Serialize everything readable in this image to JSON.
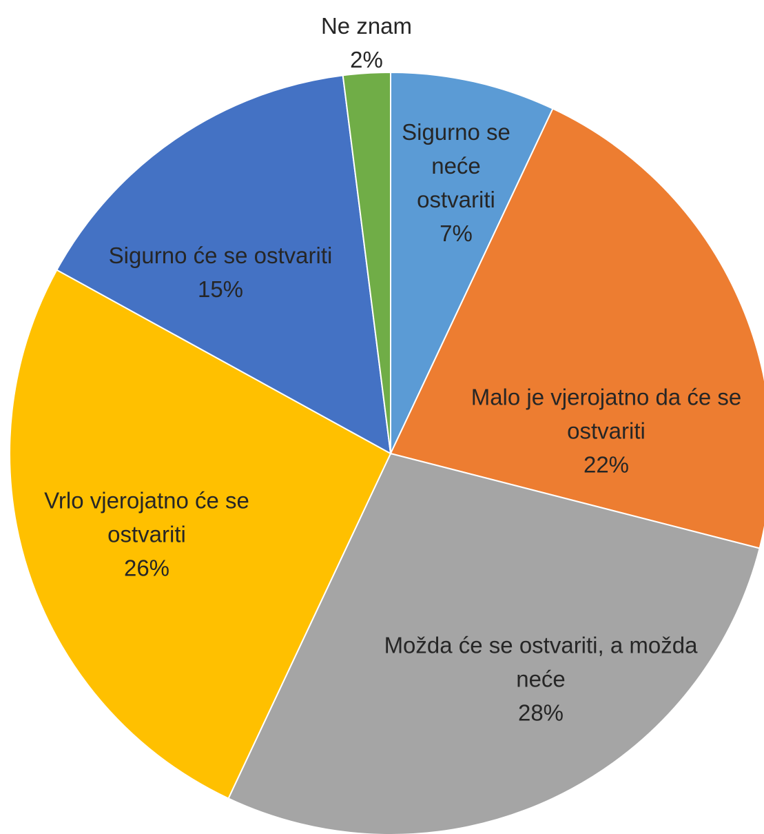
{
  "chart_data": {
    "type": "pie",
    "categories": [
      "Sigurno se neće ostvariti",
      "Malo je vjerojatno da će se ostvariti",
      "Možda će se ostvariti, a možda neće",
      "Vrlo vjerojatno će se ostvariti",
      "Sigurno će se ostvariti",
      "Ne znam"
    ],
    "values": [
      7,
      22,
      28,
      26,
      15,
      2
    ],
    "value_labels": [
      "7%",
      "22%",
      "28%",
      "26%",
      "15%",
      "2%"
    ],
    "colors": [
      "#5b9bd5",
      "#ed7d31",
      "#a5a5a5",
      "#ffc000",
      "#4472c4",
      "#70ad47"
    ]
  }
}
